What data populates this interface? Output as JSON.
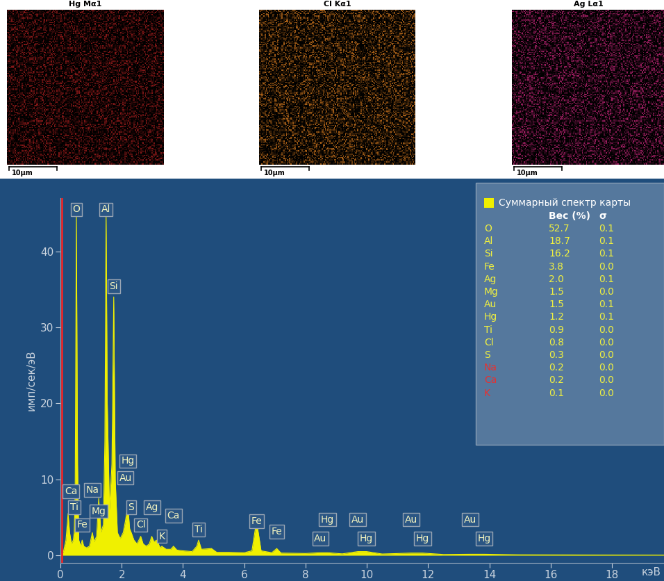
{
  "chart_data": {
    "type": "area",
    "x": [
      0.0,
      0.1,
      0.18,
      0.25,
      0.3,
      0.36,
      0.42,
      0.45,
      0.48,
      0.52,
      0.56,
      0.6,
      0.66,
      0.71,
      0.76,
      0.85,
      0.95,
      1.04,
      1.1,
      1.18,
      1.25,
      1.32,
      1.4,
      1.45,
      1.49,
      1.53,
      1.6,
      1.68,
      1.74,
      1.79,
      1.86,
      1.95,
      2.05,
      2.12,
      2.2,
      2.26,
      2.31,
      2.4,
      2.5,
      2.62,
      2.7,
      2.8,
      2.9,
      2.98,
      3.05,
      3.15,
      3.25,
      3.31,
      3.45,
      3.6,
      3.69,
      3.8,
      4.0,
      4.3,
      4.45,
      4.51,
      4.6,
      4.93,
      5.1,
      5.5,
      6.0,
      6.25,
      6.4,
      6.55,
      6.9,
      7.06,
      7.2,
      8.0,
      8.49,
      8.72,
      9.2,
      9.71,
      9.99,
      10.5,
      11.44,
      11.82,
      12.5,
      13.38,
      13.83,
      15.0,
      17.0,
      19.7
    ],
    "values": [
      0,
      0.5,
      2,
      5.5,
      3,
      1.5,
      2,
      3,
      8,
      45,
      12,
      2,
      1.2,
      2,
      1.2,
      1.0,
      1.2,
      3,
      1.8,
      2.5,
      7.5,
      3,
      4,
      15,
      45,
      20,
      6,
      12,
      34,
      10,
      3,
      2.2,
      3,
      4.5,
      6.5,
      3.5,
      3,
      2,
      1.5,
      2.5,
      1.5,
      1.2,
      1.5,
      2.5,
      1.8,
      2,
      1.0,
      1.2,
      0.8,
      0.8,
      1.2,
      0.7,
      0.6,
      0.5,
      1.2,
      2.0,
      0.8,
      0.9,
      0.4,
      0.4,
      0.35,
      0.6,
      4.5,
      0.6,
      0.35,
      0.9,
      0.3,
      0.25,
      0.35,
      0.35,
      0.2,
      0.5,
      0.5,
      0.18,
      0.3,
      0.3,
      0.12,
      0.15,
      0.15,
      0.08,
      0.05,
      0.03
    ],
    "color": "#f0f000",
    "xlim": [
      0,
      19.7
    ],
    "ylim": [
      -1,
      47
    ],
    "xticks": [
      0,
      2,
      4,
      6,
      8,
      10,
      12,
      14,
      16,
      18
    ],
    "yticks": [
      0,
      10,
      20,
      30,
      40
    ],
    "x_label": "кэВ",
    "y_label": "имп/сек/эВ",
    "cursor_x": 0.05,
    "peak_labels": [
      {
        "label": "O",
        "x": 0.52,
        "y": 45.5
      },
      {
        "label": "Al",
        "x": 1.49,
        "y": 45.5
      },
      {
        "label": "Si",
        "x": 1.74,
        "y": 35.4
      },
      {
        "label": "Hg",
        "x": 2.2,
        "y": 12.4
      },
      {
        "label": "Au",
        "x": 2.12,
        "y": 10.2
      },
      {
        "label": "Ca",
        "x": 0.34,
        "y": 8.4
      },
      {
        "label": "Na",
        "x": 1.04,
        "y": 8.6
      },
      {
        "label": "Ti",
        "x": 0.45,
        "y": 6.3
      },
      {
        "label": "Mg",
        "x": 1.25,
        "y": 5.8
      },
      {
        "label": "Fe",
        "x": 0.72,
        "y": 4.0
      },
      {
        "label": "S",
        "x": 2.31,
        "y": 6.3
      },
      {
        "label": "Ag",
        "x": 3.0,
        "y": 6.3
      },
      {
        "label": "Cl",
        "x": 2.62,
        "y": 4.0
      },
      {
        "label": "K",
        "x": 3.31,
        "y": 2.5
      },
      {
        "label": "Ca",
        "x": 3.69,
        "y": 5.2
      },
      {
        "label": "Ti",
        "x": 4.51,
        "y": 3.4
      },
      {
        "label": "Fe",
        "x": 6.4,
        "y": 4.5
      },
      {
        "label": "Fe",
        "x": 7.06,
        "y": 3.1
      },
      {
        "label": "Hg",
        "x": 8.72,
        "y": 4.7
      },
      {
        "label": "Au",
        "x": 8.49,
        "y": 2.2
      },
      {
        "label": "Au",
        "x": 9.71,
        "y": 4.7
      },
      {
        "label": "Hg",
        "x": 9.99,
        "y": 2.2
      },
      {
        "label": "Au",
        "x": 11.44,
        "y": 4.7
      },
      {
        "label": "Hg",
        "x": 11.82,
        "y": 2.2
      },
      {
        "label": "Au",
        "x": 13.38,
        "y": 4.7
      },
      {
        "label": "Hg",
        "x": 13.83,
        "y": 2.2
      }
    ],
    "legend_table": {
      "title": "Суммарный спектр карты",
      "columns": [
        "Вес (%)",
        "σ"
      ],
      "rows": [
        {
          "element": "O",
          "weight": 52.7,
          "sigma": 0.1,
          "color": "#f0f040"
        },
        {
          "element": "Al",
          "weight": 18.7,
          "sigma": 0.1,
          "color": "#f0f040"
        },
        {
          "element": "Si",
          "weight": 16.2,
          "sigma": 0.1,
          "color": "#f0f040"
        },
        {
          "element": "Fe",
          "weight": 3.8,
          "sigma": 0.0,
          "color": "#f0f040"
        },
        {
          "element": "Ag",
          "weight": 2.0,
          "sigma": 0.1,
          "color": "#f0f040"
        },
        {
          "element": "Mg",
          "weight": 1.5,
          "sigma": 0.0,
          "color": "#f0f040"
        },
        {
          "element": "Au",
          "weight": 1.5,
          "sigma": 0.1,
          "color": "#f0f040"
        },
        {
          "element": "Hg",
          "weight": 1.2,
          "sigma": 0.1,
          "color": "#f0f040"
        },
        {
          "element": "Ti",
          "weight": 0.9,
          "sigma": 0.0,
          "color": "#f0f040"
        },
        {
          "element": "Cl",
          "weight": 0.8,
          "sigma": 0.0,
          "color": "#f0f040"
        },
        {
          "element": "S",
          "weight": 0.3,
          "sigma": 0.0,
          "color": "#f0f040"
        },
        {
          "element": "Na",
          "weight": 0.2,
          "sigma": 0.0,
          "color": "#e83030"
        },
        {
          "element": "Ca",
          "weight": 0.2,
          "sigma": 0.0,
          "color": "#e83030"
        },
        {
          "element": "K",
          "weight": 0.1,
          "sigma": 0.0,
          "color": "#e83030"
        }
      ]
    }
  },
  "maps": [
    {
      "title": "Hg Mα1",
      "color": "#b02020",
      "scale_bar": "10µm"
    },
    {
      "title": "Cl Kα1",
      "color": "#e08020",
      "scale_bar": "10µm"
    },
    {
      "title": "Ag Lα1",
      "color": "#d02880",
      "scale_bar": "10µm"
    }
  ]
}
